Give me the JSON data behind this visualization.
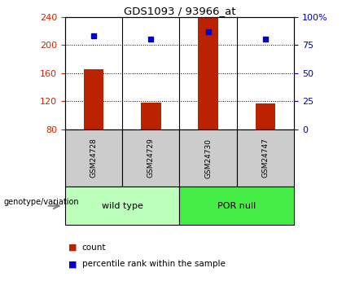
{
  "title": "GDS1093 / 93966_at",
  "samples": [
    "GSM24728",
    "GSM24729",
    "GSM24730",
    "GSM24747"
  ],
  "group_labels": [
    "wild type",
    "POR null"
  ],
  "bar_color": "#bb2200",
  "dot_color": "#0000cc",
  "counts": [
    165,
    118,
    238,
    117
  ],
  "percentile_ranks": [
    83,
    80,
    87,
    80
  ],
  "ylim_left": [
    80,
    240
  ],
  "ylim_right": [
    0,
    100
  ],
  "yticks_left": [
    80,
    120,
    160,
    200,
    240
  ],
  "yticks_right": [
    0,
    25,
    50,
    75,
    100
  ],
  "bar_bottom": 80,
  "bar_width": 0.35,
  "tick_color_left": "#cc2200",
  "tick_color_right": "#0000cc",
  "sample_box_color": "#cccccc",
  "group_wt_color": "#bbffbb",
  "group_por_color": "#44ee44",
  "legend_count_label": "count",
  "legend_pct_label": "percentile rank within the sample",
  "genotype_label": "genotype/variation",
  "bg_color": "#ffffff"
}
